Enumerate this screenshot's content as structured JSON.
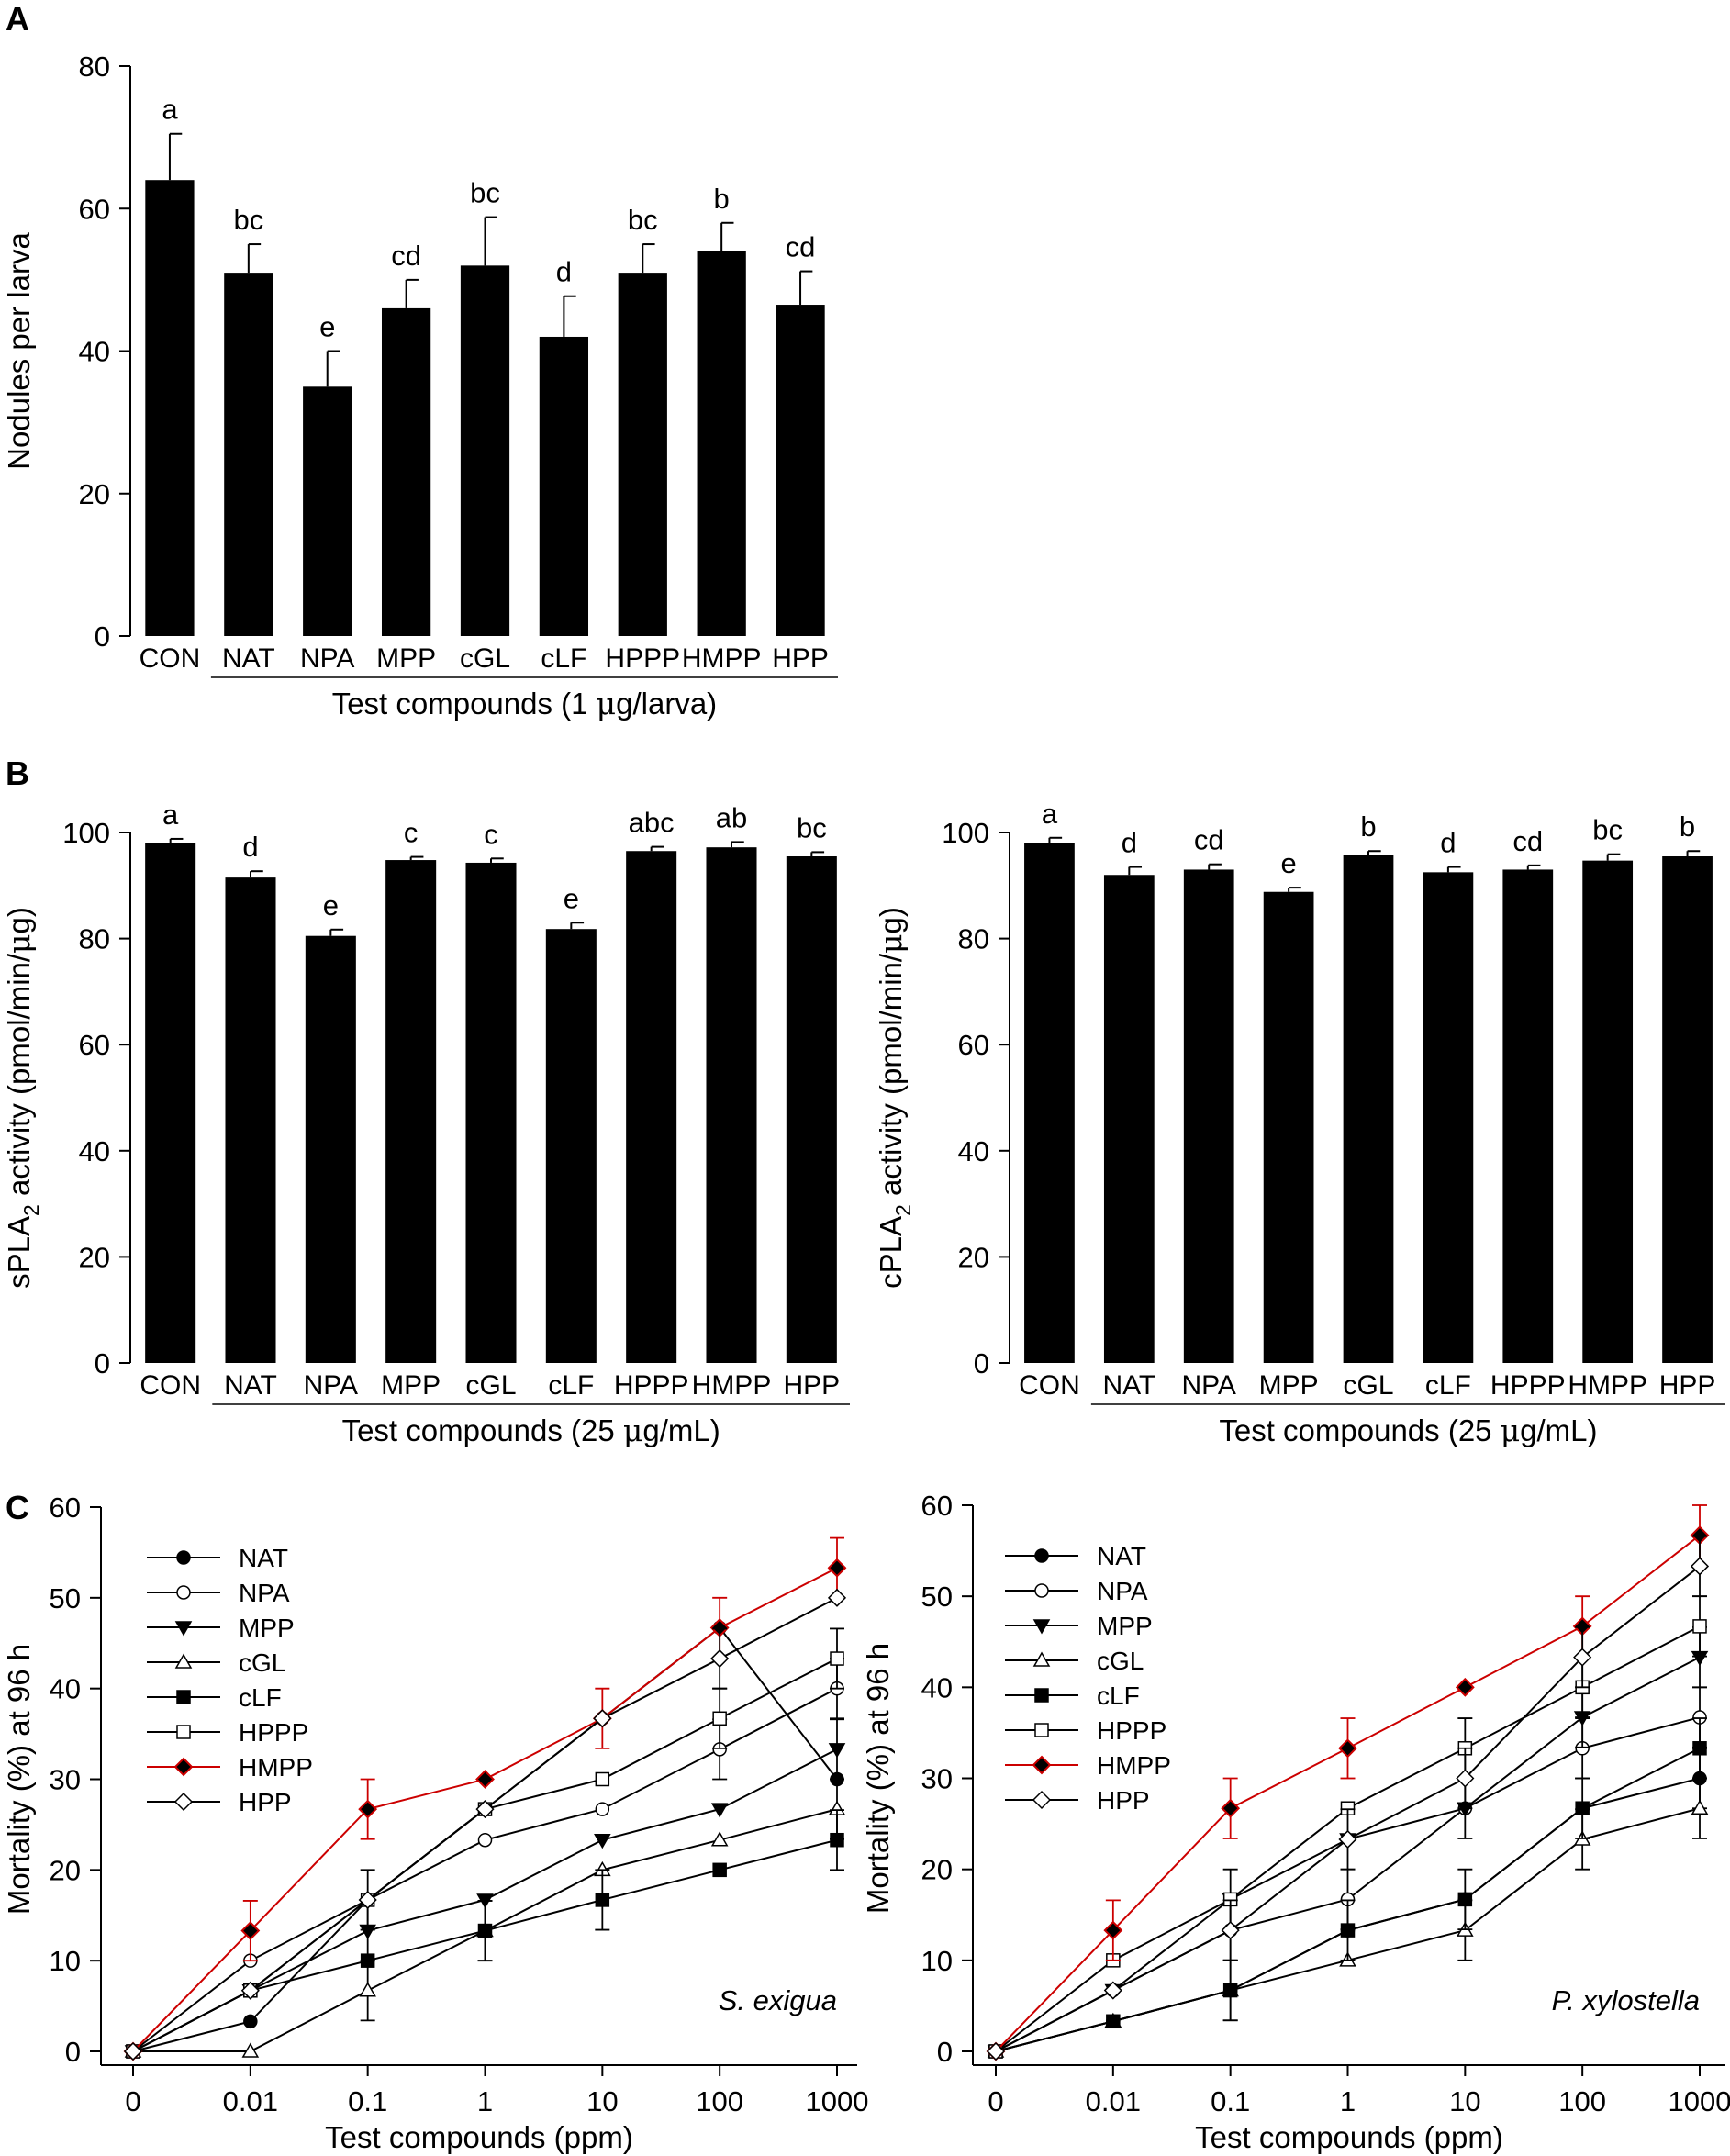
{
  "panel_labels": [
    "A",
    "B",
    "C"
  ],
  "chart_data": [
    {
      "id": "A",
      "type": "bar",
      "categories": [
        "CON",
        "NAT",
        "NPA",
        "MPP",
        "cGL",
        "cLF",
        "HPPP",
        "HMPP",
        "HPP"
      ],
      "values": [
        64.0,
        51.0,
        35.0,
        46.0,
        52.0,
        42.0,
        51.0,
        54.0,
        46.5
      ],
      "errors": [
        6.5,
        4.0,
        5.0,
        4.0,
        6.8,
        5.7,
        4.0,
        4.0,
        4.7
      ],
      "letters": [
        "a",
        "bc",
        "e",
        "cd",
        "bc",
        "d",
        "bc",
        "b",
        "cd"
      ],
      "ylim": [
        0,
        80
      ],
      "yticks": [
        0,
        20,
        40,
        60,
        80
      ],
      "ylabel": "Nodules per larva",
      "xlabel_prefix": "Test compounds (1 ",
      "xlabel_mu": "μ",
      "xlabel_suffix": "g/larva)"
    },
    {
      "id": "B-left",
      "type": "bar",
      "categories": [
        "CON",
        "NAT",
        "NPA",
        "MPP",
        "cGL",
        "cLF",
        "HPPP",
        "HMPP",
        "HPP"
      ],
      "values": [
        98.0,
        91.5,
        80.5,
        94.8,
        94.3,
        81.8,
        96.5,
        97.2,
        95.5
      ],
      "errors": [
        0.8,
        1.2,
        1.2,
        0.6,
        0.8,
        1.2,
        0.8,
        1.0,
        0.8
      ],
      "letters": [
        "a",
        "d",
        "e",
        "c",
        "c",
        "e",
        "abc",
        "ab",
        "bc"
      ],
      "ylim": [
        0,
        100
      ],
      "yticks": [
        0,
        20,
        40,
        60,
        80,
        100
      ],
      "ylabel_prefix": "sPLA",
      "ylabel_sub": "2",
      "ylabel_suffix": " activity (pmol/min/",
      "ylabel_mu": "μ",
      "ylabel_end": "g)",
      "xlabel_prefix": "Test compounds (25 ",
      "xlabel_mu": "μ",
      "xlabel_suffix": "g/mL)"
    },
    {
      "id": "B-right",
      "type": "bar",
      "categories": [
        "CON",
        "NAT",
        "NPA",
        "MPP",
        "cGL",
        "cLF",
        "HPPP",
        "HMPP",
        "HPP"
      ],
      "values": [
        98.0,
        92.0,
        93.0,
        88.8,
        95.7,
        92.5,
        93.0,
        94.7,
        95.5
      ],
      "errors": [
        1.0,
        1.5,
        1.0,
        0.8,
        0.8,
        1.0,
        0.8,
        1.2,
        1.0
      ],
      "letters": [
        "a",
        "d",
        "cd",
        "e",
        "b",
        "d",
        "cd",
        "bc",
        "b"
      ],
      "ylim": [
        0,
        100
      ],
      "yticks": [
        0,
        20,
        40,
        60,
        80,
        100
      ],
      "ylabel_prefix": "cPLA",
      "ylabel_sub": "2",
      "ylabel_suffix": " activity (pmol/min/",
      "ylabel_mu": "μ",
      "ylabel_end": "g)",
      "xlabel_prefix": "Test compounds (25 ",
      "xlabel_mu": "μ",
      "xlabel_suffix": "g/mL)"
    },
    {
      "id": "C-left",
      "type": "line",
      "x": [
        "0",
        "0.01",
        "0.1",
        "1",
        "10",
        "100",
        "1000"
      ],
      "ylim": [
        0,
        60
      ],
      "yticks": [
        0,
        10,
        20,
        30,
        40,
        50,
        60
      ],
      "ylabel": "Mortality (%) at 96 h",
      "xlabel": "Test compounds (ppm)",
      "annotation": "S. exigua",
      "series": [
        {
          "name": "NAT",
          "marker": "circle-filled",
          "color": "#000000",
          "values": [
            0,
            3.3,
            16.7,
            26.7,
            36.7,
            46.7,
            30.0
          ],
          "errors": [
            0,
            0,
            0,
            0,
            0,
            0,
            0
          ]
        },
        {
          "name": "NPA",
          "marker": "circle-open",
          "color": "#000000",
          "values": [
            0,
            10.0,
            16.7,
            23.3,
            26.7,
            33.3,
            40.0
          ],
          "errors": [
            0,
            0,
            0,
            0,
            0,
            3.3,
            3.3
          ]
        },
        {
          "name": "MPP",
          "marker": "tri-down-filled",
          "color": "#000000",
          "values": [
            0,
            6.7,
            13.3,
            16.7,
            23.3,
            26.7,
            33.3
          ],
          "errors": [
            0,
            0,
            3.3,
            0,
            0,
            0,
            3.3
          ]
        },
        {
          "name": "cGL",
          "marker": "tri-up-open",
          "color": "#000000",
          "values": [
            0,
            0,
            6.7,
            13.3,
            20.0,
            23.3,
            26.7
          ],
          "errors": [
            0,
            0,
            3.3,
            3.3,
            0,
            0,
            3.3
          ]
        },
        {
          "name": "cLF",
          "marker": "square-filled",
          "color": "#000000",
          "values": [
            0,
            6.7,
            10.0,
            13.3,
            16.7,
            20.0,
            23.3
          ],
          "errors": [
            0,
            0,
            0,
            3.3,
            3.3,
            0,
            3.3
          ]
        },
        {
          "name": "HPPP",
          "marker": "square-open",
          "color": "#000000",
          "values": [
            0,
            6.7,
            16.7,
            26.7,
            30.0,
            36.7,
            43.3
          ],
          "errors": [
            0,
            0,
            0,
            0,
            0,
            3.3,
            3.3
          ]
        },
        {
          "name": "HMPP",
          "marker": "diamond-red",
          "color": "#cc0000",
          "values": [
            0,
            13.3,
            26.7,
            30.0,
            36.7,
            46.7,
            53.3
          ],
          "errors": [
            0,
            3.3,
            3.3,
            0,
            3.3,
            3.3,
            3.3
          ]
        },
        {
          "name": "HPP",
          "marker": "diamond-open",
          "color": "#000000",
          "values": [
            0,
            6.7,
            16.7,
            26.7,
            36.7,
            43.3,
            50.0
          ],
          "errors": [
            0,
            0,
            3.3,
            0,
            0,
            3.3,
            0
          ]
        }
      ]
    },
    {
      "id": "C-right",
      "type": "line",
      "x": [
        "0",
        "0.01",
        "0.1",
        "1",
        "10",
        "100",
        "1000"
      ],
      "ylim": [
        0,
        60
      ],
      "yticks": [
        0,
        10,
        20,
        30,
        40,
        50,
        60
      ],
      "ylabel": "Mortality (%) at 96 h",
      "xlabel": "Test compounds (ppm)",
      "annotation": "P. xylostella",
      "series": [
        {
          "name": "NAT",
          "marker": "circle-filled",
          "color": "#000000",
          "values": [
            0,
            3.3,
            6.7,
            13.3,
            16.7,
            26.7,
            30.0
          ],
          "errors": [
            0,
            0,
            3.3,
            0,
            0,
            0,
            3.3
          ]
        },
        {
          "name": "NPA",
          "marker": "circle-open",
          "color": "#000000",
          "values": [
            0,
            6.7,
            13.3,
            16.7,
            26.7,
            33.3,
            36.7
          ],
          "errors": [
            0,
            0,
            3.3,
            3.3,
            3.3,
            3.3,
            3.3
          ]
        },
        {
          "name": "MPP",
          "marker": "tri-down-filled",
          "color": "#000000",
          "values": [
            0,
            6.7,
            16.7,
            23.3,
            26.7,
            36.7,
            43.3
          ],
          "errors": [
            0,
            0,
            0,
            0,
            0,
            3.3,
            3.3
          ]
        },
        {
          "name": "cGL",
          "marker": "tri-up-open",
          "color": "#000000",
          "values": [
            0,
            3.3,
            6.7,
            10.0,
            13.3,
            23.3,
            26.7
          ],
          "errors": [
            0,
            0,
            3.3,
            0,
            3.3,
            3.3,
            3.3
          ]
        },
        {
          "name": "cLF",
          "marker": "square-filled",
          "color": "#000000",
          "values": [
            0,
            3.3,
            6.7,
            13.3,
            16.7,
            26.7,
            33.3
          ],
          "errors": [
            0,
            0,
            0,
            3.3,
            3.3,
            3.3,
            3.3
          ]
        },
        {
          "name": "HPPP",
          "marker": "square-open",
          "color": "#000000",
          "values": [
            0,
            10.0,
            16.7,
            26.7,
            33.3,
            40.0,
            46.7
          ],
          "errors": [
            0,
            0,
            3.3,
            0,
            3.3,
            3.3,
            3.3
          ]
        },
        {
          "name": "HMPP",
          "marker": "diamond-red",
          "color": "#cc0000",
          "values": [
            0,
            13.3,
            26.7,
            33.3,
            40.0,
            46.7,
            56.7
          ],
          "errors": [
            0,
            3.3,
            3.3,
            3.3,
            0,
            3.3,
            3.3
          ]
        },
        {
          "name": "HPP",
          "marker": "diamond-open",
          "color": "#000000",
          "values": [
            0,
            6.7,
            13.3,
            23.3,
            30.0,
            43.3,
            53.3
          ],
          "errors": [
            0,
            0,
            3.3,
            3.3,
            3.3,
            3.3,
            3.3
          ]
        }
      ]
    }
  ]
}
